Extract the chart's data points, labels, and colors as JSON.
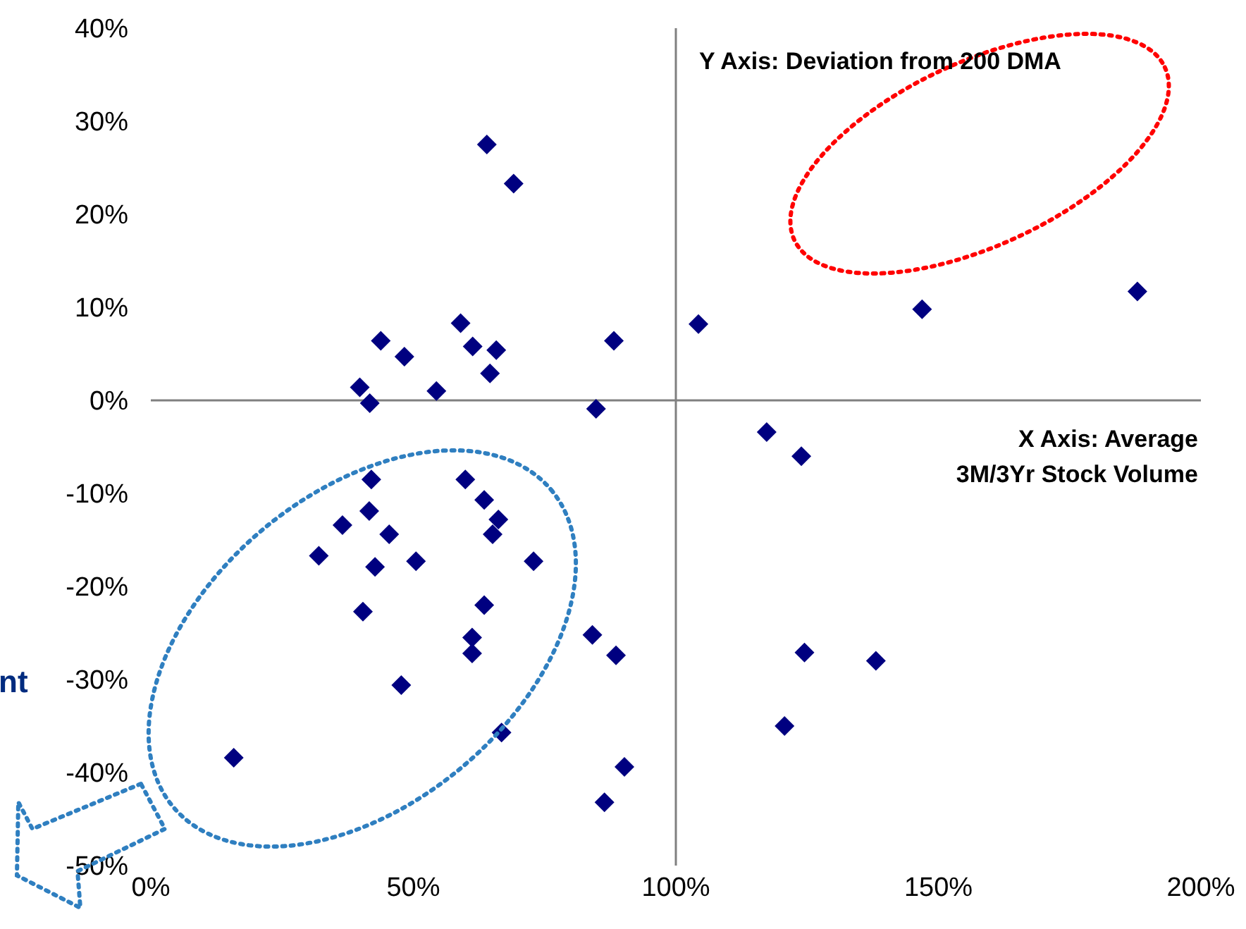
{
  "chart_data": {
    "type": "scatter",
    "annotations": [
      "Y Axis: Deviation from 200 DMA",
      "X Axis: Average\n3M/3Yr Stock Volume",
      "nt"
    ],
    "x": [
      64.0,
      69.1,
      59.0,
      43.8,
      88.2,
      48.3,
      61.3,
      65.8,
      64.6,
      39.8,
      54.4,
      41.7,
      84.8,
      42.0,
      59.9,
      63.5,
      41.6,
      66.2,
      36.5,
      65.1,
      45.4,
      32.0,
      50.5,
      72.9,
      42.7,
      40.4,
      63.5,
      84.1,
      61.2,
      61.2,
      88.6,
      47.7,
      66.8,
      15.8,
      90.2,
      86.4,
      104.3,
      146.9,
      187.9,
      117.3,
      123.9,
      124.5,
      138.1,
      120.7
    ],
    "series": [
      {
        "color": "#000080",
        "values": [
          27.5,
          23.3,
          8.3,
          6.4,
          6.4,
          4.7,
          5.8,
          5.4,
          2.9,
          1.4,
          1.0,
          -0.3,
          -0.9,
          -8.5,
          -8.5,
          -10.7,
          -11.9,
          -12.8,
          -13.4,
          -14.4,
          -14.4,
          -16.7,
          -17.3,
          -17.3,
          -17.9,
          -22.7,
          -22.0,
          -25.2,
          -25.5,
          -27.2,
          -27.4,
          -30.6,
          -35.7,
          -38.4,
          -39.4,
          -43.2,
          8.2,
          9.8,
          11.7,
          -3.4,
          -6.0,
          -27.1,
          -28.0,
          -35.0
        ]
      }
    ],
    "xlim": [
      0,
      200
    ],
    "xticks": [
      {
        "value": 0,
        "label": "0%"
      },
      {
        "value": 50,
        "label": "50%"
      },
      {
        "value": 100,
        "label": "100%"
      },
      {
        "value": 150,
        "label": "150%"
      },
      {
        "value": 200,
        "label": "200%"
      }
    ],
    "ylim": [
      -50,
      40
    ],
    "yticks": [
      {
        "value": -50,
        "label": "-50%"
      },
      {
        "value": -40,
        "label": "-40%"
      },
      {
        "value": -30,
        "label": "-30%"
      },
      {
        "value": -20,
        "label": "-20%"
      },
      {
        "value": -10,
        "label": "-10%"
      },
      {
        "value": 0,
        "label": "0%"
      },
      {
        "value": 10,
        "label": "10%"
      },
      {
        "value": 20,
        "label": "20%"
      },
      {
        "value": 30,
        "label": "30%"
      },
      {
        "value": 40,
        "label": "40%"
      }
    ],
    "ref_lines": [
      {
        "axis": "x",
        "value": 100,
        "color": "#808080"
      },
      {
        "axis": "y",
        "value": 0,
        "color": "#808080"
      }
    ],
    "grid": false,
    "legend": false,
    "marker": "diamond"
  }
}
